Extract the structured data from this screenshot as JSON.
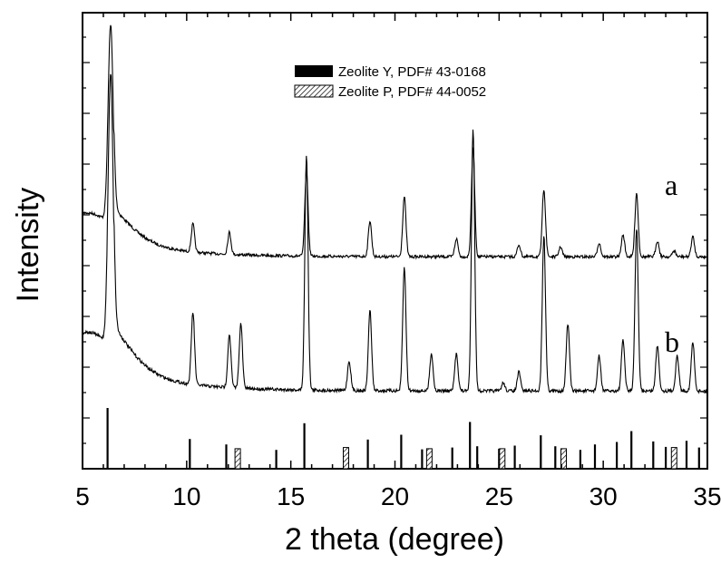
{
  "chart_data": {
    "type": "line",
    "xlabel": "2 theta (degree)",
    "ylabel": "Intensity",
    "xlim": [
      5,
      35
    ],
    "xticks": [
      5,
      10,
      15,
      20,
      25,
      30,
      35
    ],
    "xtick_labels": [
      "5",
      "10",
      "15",
      "20",
      "25",
      "30",
      "35"
    ],
    "grid": false,
    "legend_position": "top-center",
    "legend": [
      {
        "name": "Zeolite Y, PDF# 43-0168",
        "style": "solid"
      },
      {
        "name": "Zeolite P, PDF# 44-0052",
        "style": "hatched"
      }
    ],
    "series": [
      {
        "name": "a",
        "baseline": 0.04,
        "peaks": [
          [
            6.35,
            1.0
          ],
          [
            10.3,
            0.14
          ],
          [
            12.05,
            0.11
          ],
          [
            15.75,
            0.43
          ],
          [
            18.8,
            0.18
          ],
          [
            20.45,
            0.3
          ],
          [
            22.95,
            0.09
          ],
          [
            23.75,
            0.55
          ],
          [
            25.95,
            0.06
          ],
          [
            27.15,
            0.34
          ],
          [
            27.95,
            0.05
          ],
          [
            29.8,
            0.07
          ],
          [
            30.95,
            0.11
          ],
          [
            31.6,
            0.32
          ],
          [
            32.6,
            0.08
          ],
          [
            33.4,
            0.03
          ],
          [
            34.3,
            0.1
          ]
        ]
      },
      {
        "name": "b",
        "baseline": 0.03,
        "peaks": [
          [
            6.35,
            1.02
          ],
          [
            10.3,
            0.27
          ],
          [
            12.05,
            0.2
          ],
          [
            12.6,
            0.24
          ],
          [
            15.75,
            0.88
          ],
          [
            17.8,
            0.11
          ],
          [
            18.8,
            0.3
          ],
          [
            20.45,
            0.46
          ],
          [
            21.75,
            0.14
          ],
          [
            22.95,
            0.14
          ],
          [
            23.75,
            0.98
          ],
          [
            25.2,
            0.03
          ],
          [
            25.95,
            0.07
          ],
          [
            27.15,
            0.58
          ],
          [
            28.3,
            0.25
          ],
          [
            29.8,
            0.13
          ],
          [
            30.95,
            0.19
          ],
          [
            31.6,
            0.61
          ],
          [
            32.6,
            0.17
          ],
          [
            33.55,
            0.13
          ],
          [
            34.3,
            0.18
          ]
        ]
      }
    ],
    "reference_zeolite_y": [
      [
        6.2,
        1.0
      ],
      [
        10.15,
        0.49
      ],
      [
        11.9,
        0.4
      ],
      [
        14.3,
        0.31
      ],
      [
        15.65,
        0.75
      ],
      [
        18.7,
        0.48
      ],
      [
        20.3,
        0.56
      ],
      [
        21.3,
        0.32
      ],
      [
        22.75,
        0.35
      ],
      [
        23.6,
        0.77
      ],
      [
        23.95,
        0.37
      ],
      [
        25.0,
        0.33
      ],
      [
        25.75,
        0.38
      ],
      [
        27.0,
        0.55
      ],
      [
        27.7,
        0.37
      ],
      [
        28.9,
        0.31
      ],
      [
        29.6,
        0.4
      ],
      [
        30.65,
        0.44
      ],
      [
        31.35,
        0.62
      ],
      [
        32.4,
        0.45
      ],
      [
        33.0,
        0.36
      ],
      [
        34.0,
        0.46
      ],
      [
        34.6,
        0.35
      ]
    ],
    "reference_zeolite_p": [
      [
        12.45,
        0.33
      ],
      [
        17.65,
        0.35
      ],
      [
        21.65,
        0.33
      ],
      [
        25.15,
        0.33
      ],
      [
        28.1,
        0.33
      ],
      [
        33.4,
        0.35
      ]
    ]
  },
  "series_labels": {
    "a": "a",
    "b": "b"
  }
}
